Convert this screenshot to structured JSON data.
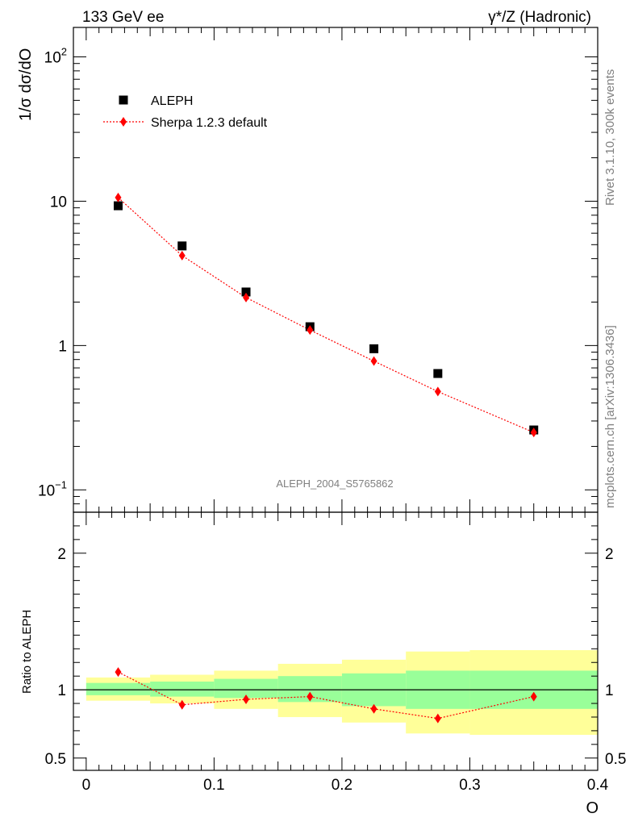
{
  "header": {
    "left": "133 GeV ee",
    "right": "γ*/Z (Hadronic)"
  },
  "side_text": {
    "rivet": "Rivet 3.1.10,  300k events",
    "mcplots": "mcplots.cern.ch [arXiv:1306.3436]"
  },
  "watermark": "ALEPH_2004_S5765862",
  "colors": {
    "data": "#000000",
    "mc": "#ff0000",
    "band_inner": "#99ff99",
    "band_outer": "#ffff99"
  },
  "chart_data": [
    {
      "type": "scatter",
      "panel": "main",
      "ylabel": "1/σ  dσ/dO",
      "yscale": "log",
      "ylim": [
        0.07,
        160
      ],
      "xlim": [
        -0.01,
        0.4
      ],
      "yticks": [
        {
          "value": 0.1,
          "base": "10",
          "exp": "−1"
        },
        {
          "value": 1,
          "label": "1"
        },
        {
          "value": 10,
          "label": "10"
        },
        {
          "value": 100,
          "base": "10",
          "exp": "2"
        }
      ],
      "legend_position": "top-left",
      "series": [
        {
          "name": "ALEPH",
          "marker": "square",
          "x": [
            0.025,
            0.075,
            0.125,
            0.175,
            0.225,
            0.275,
            0.35
          ],
          "y": [
            9.3,
            4.9,
            2.35,
            1.35,
            0.95,
            0.64,
            0.26
          ]
        },
        {
          "name": "Sherpa 1.2.3 default",
          "marker": "diamond",
          "line": "dotted",
          "x": [
            0.025,
            0.075,
            0.125,
            0.175,
            0.225,
            0.275,
            0.35
          ],
          "y": [
            10.6,
            4.2,
            2.15,
            1.28,
            0.78,
            0.48,
            0.25
          ]
        }
      ]
    },
    {
      "type": "line",
      "panel": "ratio",
      "ylabel": "Ratio to ALEPH",
      "xlabel": "O",
      "ylim": [
        0.41,
        2.3
      ],
      "xlim": [
        -0.01,
        0.4
      ],
      "yticks": [
        {
          "value": 0.5,
          "label": "0.5"
        },
        {
          "value": 1,
          "label": "1"
        },
        {
          "value": 2,
          "label": "2"
        }
      ],
      "xticks": [
        {
          "value": 0,
          "label": "0"
        },
        {
          "value": 0.1,
          "label": "0.1"
        },
        {
          "value": 0.2,
          "label": "0.2"
        },
        {
          "value": 0.3,
          "label": "0.3"
        },
        {
          "value": 0.4,
          "label": "0.4"
        }
      ],
      "bands": [
        {
          "x0": 0.0,
          "x1": 0.05,
          "inner": [
            0.96,
            1.05
          ],
          "outer": [
            0.92,
            1.09
          ]
        },
        {
          "x0": 0.05,
          "x1": 0.1,
          "inner": [
            0.95,
            1.06
          ],
          "outer": [
            0.9,
            1.11
          ]
        },
        {
          "x0": 0.1,
          "x1": 0.15,
          "inner": [
            0.94,
            1.08
          ],
          "outer": [
            0.86,
            1.14
          ]
        },
        {
          "x0": 0.15,
          "x1": 0.2,
          "inner": [
            0.91,
            1.1
          ],
          "outer": [
            0.8,
            1.19
          ]
        },
        {
          "x0": 0.2,
          "x1": 0.25,
          "inner": [
            0.88,
            1.12
          ],
          "outer": [
            0.76,
            1.22
          ]
        },
        {
          "x0": 0.25,
          "x1": 0.3,
          "inner": [
            0.86,
            1.14
          ],
          "outer": [
            0.68,
            1.28
          ]
        },
        {
          "x0": 0.3,
          "x1": 0.4,
          "inner": [
            0.86,
            1.14
          ],
          "outer": [
            0.67,
            1.29
          ]
        }
      ],
      "series": [
        {
          "name": "Sherpa 1.2.3 default",
          "x": [
            0.025,
            0.075,
            0.125,
            0.175,
            0.225,
            0.275,
            0.35
          ],
          "y": [
            1.13,
            0.89,
            0.93,
            0.95,
            0.86,
            0.79,
            0.95
          ]
        }
      ]
    }
  ]
}
